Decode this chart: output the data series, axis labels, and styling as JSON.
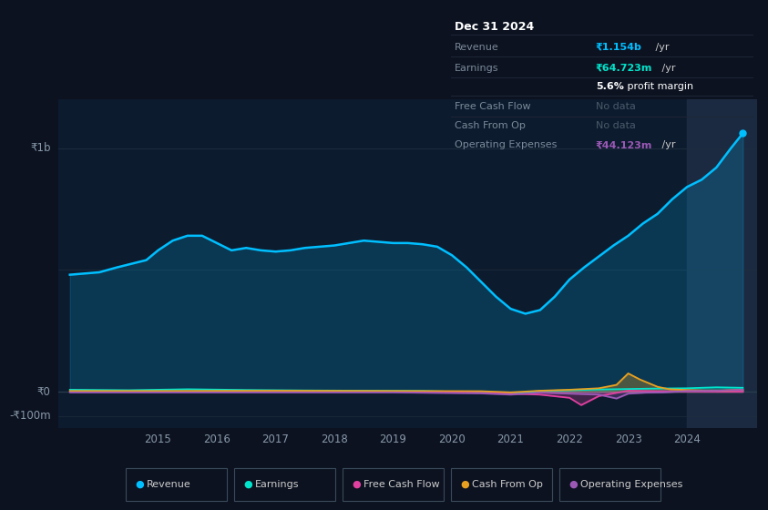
{
  "bg_color": "#0c1220",
  "plot_bg_color": "#0d1b2e",
  "y1b_label": "₹1b",
  "y0_label": "₹0",
  "yn100m_label": "-₹100m",
  "x_ticks": [
    2015,
    2016,
    2017,
    2018,
    2019,
    2020,
    2021,
    2022,
    2023,
    2024
  ],
  "legend": [
    {
      "label": "Revenue",
      "color": "#00bfff"
    },
    {
      "label": "Earnings",
      "color": "#00e5cc"
    },
    {
      "label": "Free Cash Flow",
      "color": "#e040a0"
    },
    {
      "label": "Cash From Op",
      "color": "#e8a020"
    },
    {
      "label": "Operating Expenses",
      "color": "#9b59b6"
    }
  ],
  "info_box": {
    "date": "Dec 31 2024",
    "revenue_val": "₹1.154b",
    "revenue_suffix": " /yr",
    "earnings_val": "₹64.723m",
    "earnings_suffix": " /yr",
    "margin_val": "5.6%",
    "margin_suffix": " profit margin",
    "fcf": "No data",
    "cashop": "No data",
    "opex_val": "₹44.123m",
    "opex_suffix": " /yr"
  },
  "revenue_x": [
    2013.5,
    2014.0,
    2014.3,
    2014.8,
    2015.0,
    2015.25,
    2015.5,
    2015.75,
    2016.0,
    2016.25,
    2016.5,
    2016.75,
    2017.0,
    2017.25,
    2017.5,
    2017.75,
    2018.0,
    2018.25,
    2018.5,
    2018.75,
    2019.0,
    2019.25,
    2019.5,
    2019.75,
    2020.0,
    2020.25,
    2020.5,
    2020.75,
    2021.0,
    2021.25,
    2021.5,
    2021.75,
    2022.0,
    2022.25,
    2022.5,
    2022.75,
    2023.0,
    2023.25,
    2023.5,
    2023.75,
    2024.0,
    2024.25,
    2024.5,
    2024.75,
    2024.95
  ],
  "revenue_y": [
    480,
    490,
    510,
    540,
    580,
    620,
    640,
    640,
    610,
    580,
    590,
    580,
    575,
    580,
    590,
    595,
    600,
    610,
    620,
    615,
    610,
    610,
    605,
    595,
    560,
    510,
    450,
    390,
    340,
    320,
    335,
    390,
    460,
    510,
    555,
    600,
    640,
    690,
    730,
    790,
    840,
    870,
    920,
    1000,
    1060
  ],
  "earnings_x": [
    2013.5,
    2014.5,
    2015.5,
    2016.5,
    2017.5,
    2018.5,
    2019.5,
    2020.5,
    2021.0,
    2021.5,
    2022.0,
    2022.5,
    2023.0,
    2023.5,
    2024.0,
    2024.5,
    2024.95
  ],
  "earnings_y": [
    8,
    6,
    10,
    7,
    5,
    4,
    3,
    -3,
    -8,
    3,
    6,
    9,
    11,
    13,
    14,
    18,
    16
  ],
  "fcf_x": [
    2013.5,
    2015.0,
    2017.0,
    2019.0,
    2020.5,
    2021.0,
    2021.5,
    2022.0,
    2022.2,
    2022.5,
    2023.0,
    2023.5,
    2024.0,
    2024.5,
    2024.95
  ],
  "fcf_y": [
    0,
    0,
    0,
    0,
    -4,
    -8,
    -12,
    -25,
    -55,
    -18,
    4,
    2,
    1,
    0,
    0
  ],
  "cashop_x": [
    2013.5,
    2015.0,
    2017.0,
    2019.0,
    2020.5,
    2021.0,
    2021.5,
    2022.0,
    2022.5,
    2022.8,
    2023.0,
    2023.2,
    2023.5,
    2023.7,
    2024.0,
    2024.3,
    2024.6,
    2024.95
  ],
  "cashop_y": [
    3,
    3,
    4,
    3,
    2,
    -3,
    4,
    8,
    14,
    28,
    75,
    50,
    20,
    10,
    7,
    5,
    5,
    8
  ],
  "opex_x": [
    2013.5,
    2015.0,
    2017.0,
    2019.0,
    2020.5,
    2021.0,
    2021.5,
    2022.0,
    2022.5,
    2022.8,
    2023.0,
    2023.3,
    2023.6,
    2024.0,
    2024.5,
    2024.95
  ],
  "opex_y": [
    -3,
    -3,
    -3,
    -3,
    -7,
    -12,
    -4,
    -8,
    -12,
    -28,
    -8,
    -4,
    -3,
    3,
    4,
    8
  ],
  "shaded_start": 2024.0,
  "ylim": [
    -150,
    1200
  ],
  "xlim": [
    2013.3,
    2025.2
  ],
  "revenue_color": "#00bfff",
  "earnings_color": "#00e5cc",
  "fcf_color": "#e040a0",
  "cashop_color": "#e8a020",
  "opex_color": "#9b59b6"
}
